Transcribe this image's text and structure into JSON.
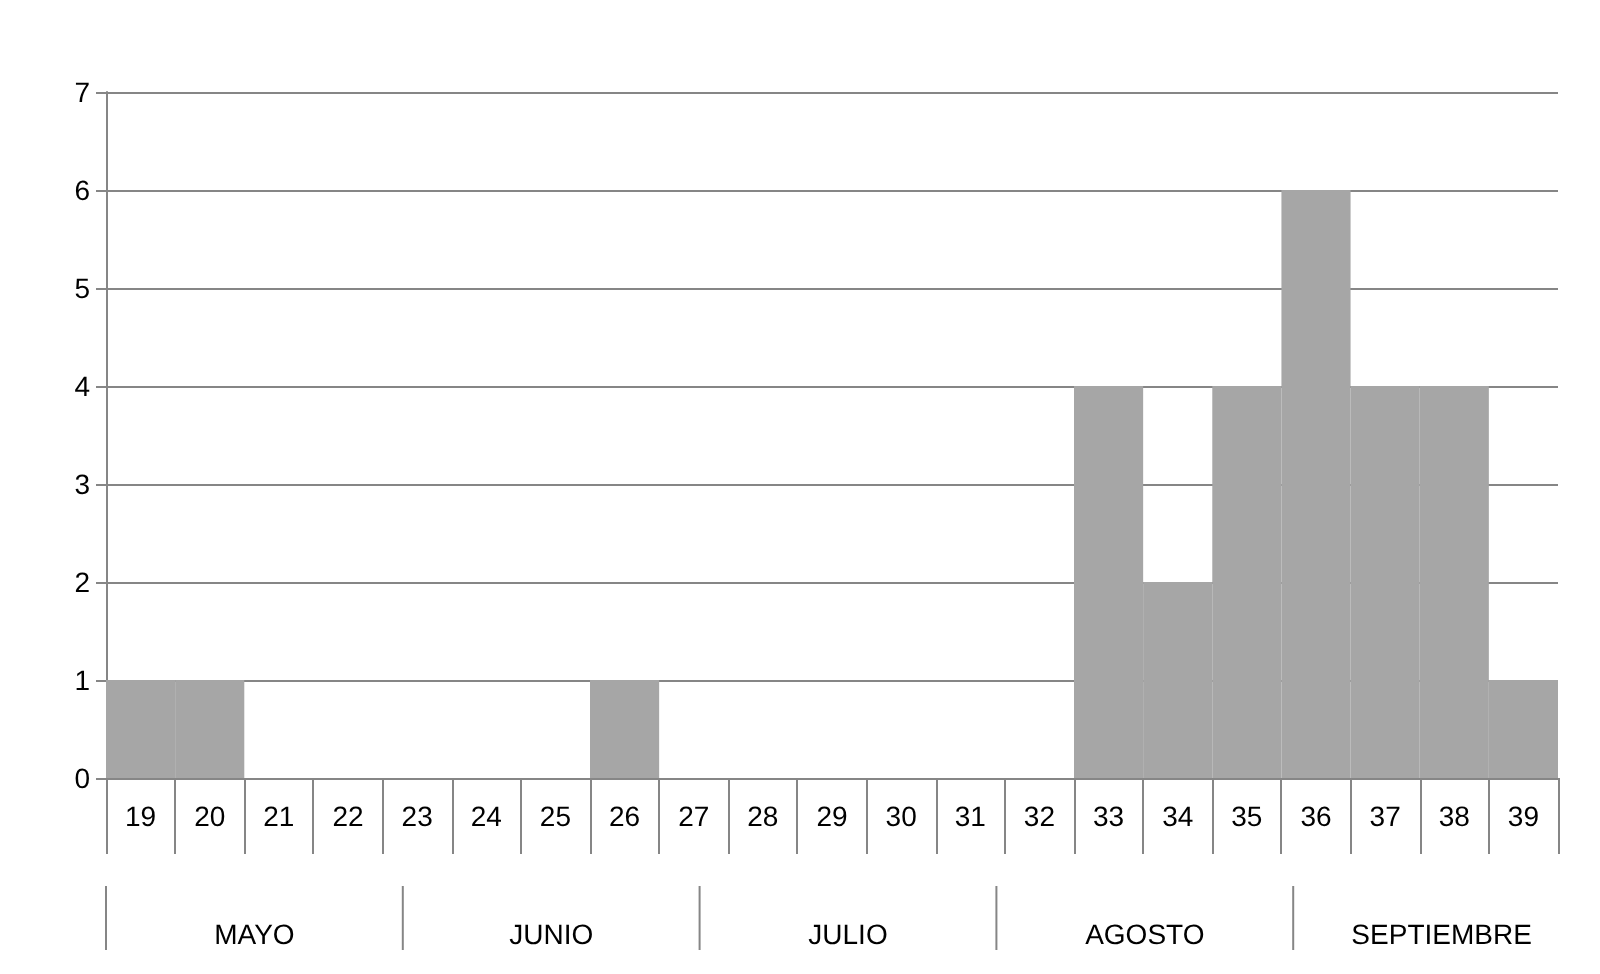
{
  "chart_data": {
    "type": "bar",
    "categories": [
      "19",
      "20",
      "21",
      "22",
      "23",
      "24",
      "25",
      "26",
      "27",
      "28",
      "29",
      "30",
      "31",
      "32",
      "33",
      "34",
      "35",
      "36",
      "37",
      "38",
      "39"
    ],
    "values": [
      1,
      1,
      0,
      0,
      0,
      0,
      0,
      1,
      0,
      0,
      0,
      0,
      0,
      0,
      4,
      2,
      4,
      6,
      4,
      4,
      1
    ],
    "color": "#a6a6a6",
    "ylim": [
      0,
      7
    ],
    "yticks": [
      0,
      1,
      2,
      3,
      4,
      5,
      6,
      7
    ],
    "grid": "y",
    "annotations": [
      "MAYO",
      "JUNIO",
      "JULIO",
      "AGOSTO",
      "SEPTIEMBRE"
    ]
  }
}
